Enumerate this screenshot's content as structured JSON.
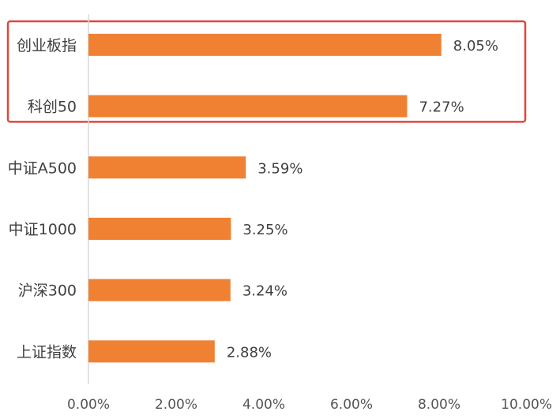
{
  "chart_data": {
    "type": "bar",
    "orientation": "horizontal",
    "categories": [
      "创业板指",
      "科创50",
      "中证A500",
      "中证1000",
      "沪深300",
      "上证指数"
    ],
    "values": [
      8.05,
      7.27,
      3.59,
      3.25,
      3.24,
      2.88
    ],
    "value_labels": [
      "8.05%",
      "7.27%",
      "3.59%",
      "3.25%",
      "3.24%",
      "2.88%"
    ],
    "x_ticks": [
      0,
      2,
      4,
      6,
      8,
      10
    ],
    "x_tick_labels": [
      "0.00%",
      "2.00%",
      "4.00%",
      "6.00%",
      "8.00%",
      "10.00%"
    ],
    "xlim": [
      0,
      10
    ],
    "title": "",
    "xlabel": "",
    "ylabel": "",
    "grid": false,
    "legend": "none",
    "highlight": {
      "categories": [
        "创业板指",
        "科创50"
      ],
      "color": "#e0473c"
    },
    "colors": {
      "bar": "#f08133",
      "axis": "#d9d9d9"
    }
  }
}
